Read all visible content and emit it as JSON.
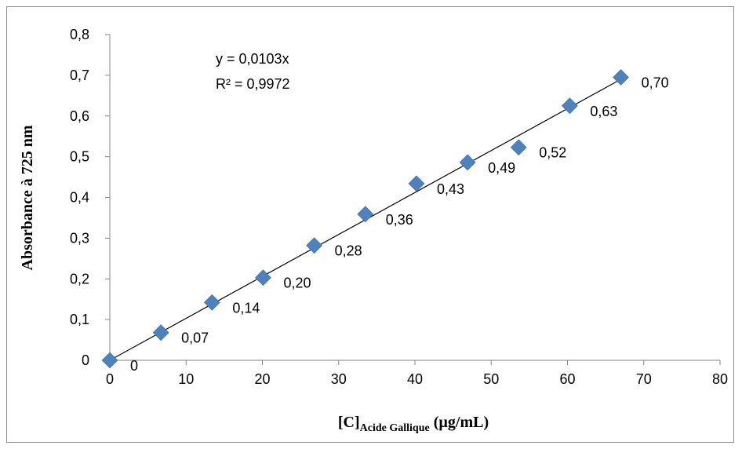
{
  "chart_data": {
    "type": "scatter",
    "title": "",
    "xlabel": {
      "main": "[C]",
      "sub": "Acide Gallique",
      "unit": " (µg/mL)"
    },
    "ylabel": "Absorbance à 725 nm",
    "xlim": [
      0,
      80
    ],
    "ylim": [
      0,
      0.8
    ],
    "x_ticks": [
      "0",
      "10",
      "20",
      "30",
      "40",
      "50",
      "60",
      "70",
      "80"
    ],
    "y_ticks": [
      "0",
      "0,1",
      "0,2",
      "0,3",
      "0,4",
      "0,5",
      "0,6",
      "0,7",
      "0,8"
    ],
    "grid": false,
    "legend": "none",
    "marker_color": "#4f81bd",
    "series": [
      {
        "x": [
          0,
          6.7,
          13.4,
          20.1,
          26.8,
          33.5,
          40.2,
          46.9,
          53.6,
          60.3,
          67.0
        ],
        "y": [
          0,
          0.068,
          0.142,
          0.203,
          0.282,
          0.359,
          0.434,
          0.486,
          0.523,
          0.625,
          0.695
        ],
        "labels": [
          "0",
          "0,07",
          "0,14",
          "0,20",
          "0,28",
          "0,36",
          "0,43",
          "0,49",
          "0,52",
          "0,63",
          "0,70"
        ]
      }
    ],
    "trendline": {
      "slope": 0.0103,
      "equation": "y = 0,0103x",
      "r2": "R² = 0,9972"
    }
  }
}
